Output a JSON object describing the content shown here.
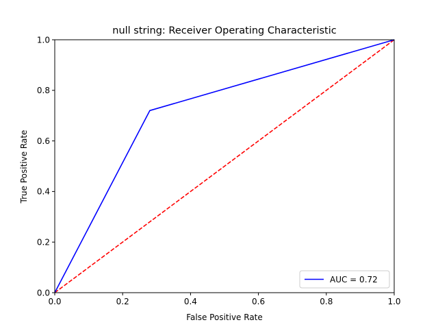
{
  "chart_data": {
    "type": "line",
    "title": "null string: Receiver Operating Characteristic",
    "xlabel": "False Positive Rate",
    "ylabel": "True Positive Rate",
    "xlim": [
      0,
      1
    ],
    "ylim": [
      0,
      1
    ],
    "xticks": [
      0.0,
      0.2,
      0.4,
      0.6,
      0.8,
      1.0
    ],
    "yticks": [
      0.0,
      0.2,
      0.4,
      0.6,
      0.8,
      1.0
    ],
    "xtick_labels": [
      "0.0",
      "0.2",
      "0.4",
      "0.6",
      "0.8",
      "1.0"
    ],
    "ytick_labels": [
      "0.0",
      "0.2",
      "0.4",
      "0.6",
      "0.8",
      "1.0"
    ],
    "grid": false,
    "legend_position": "lower-right",
    "series": [
      {
        "name": "AUC = 0.72",
        "x": [
          0.0,
          0.28,
          1.0
        ],
        "y": [
          0.0,
          0.72,
          1.0
        ],
        "color": "#0000ff",
        "style": "solid"
      },
      {
        "x": [
          0.0,
          1.0
        ],
        "y": [
          0.0,
          1.0
        ],
        "color": "#ff0000",
        "style": "dashed"
      }
    ]
  }
}
